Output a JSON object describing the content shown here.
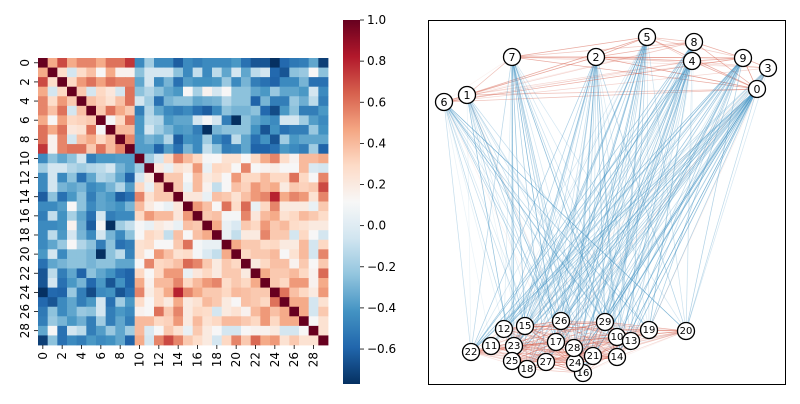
{
  "chart_data": [
    {
      "type": "heatmap",
      "x_tick_labels": [
        "0",
        "2",
        "4",
        "6",
        "8",
        "10",
        "12",
        "14",
        "16",
        "18",
        "20",
        "22",
        "24",
        "26",
        "28"
      ],
      "y_tick_labels": [
        "0",
        "2",
        "4",
        "6",
        "8",
        "10",
        "12",
        "14",
        "16",
        "18",
        "20",
        "22",
        "24",
        "26",
        "28"
      ],
      "size": 30,
      "colormap": "RdBu_r",
      "vmin": -0.77,
      "vmax": 1.0,
      "colorbar_ticks": [
        "1.0",
        "0.8",
        "0.6",
        "0.4",
        "0.2",
        "0.0",
        "−0.2",
        "−0.4",
        "−0.6"
      ],
      "colorbar_tick_values": [
        1.0,
        0.8,
        0.6,
        0.4,
        0.2,
        0.0,
        -0.2,
        -0.4,
        -0.6
      ],
      "values_upper_triangle": [
        [
          1,
          0.45,
          0.7,
          0.45,
          0.55,
          0.55,
          0.45,
          0.6,
          0.6,
          0.75,
          -0.45,
          -0.2,
          -0.45,
          -0.45,
          -0.62,
          -0.45,
          -0.5,
          -0.45,
          -0.45,
          -0.45,
          -0.4,
          -0.55,
          -0.65,
          -0.65,
          -0.77,
          -0.58,
          -0.52,
          -0.5,
          -0.35,
          -0.72
        ],
        [
          1,
          0.28,
          -0.05,
          0.28,
          0.38,
          0.12,
          0.45,
          0.15,
          0.15,
          -0.25,
          -0.05,
          -0.05,
          -0.05,
          -0.25,
          -0.45,
          -0.1,
          -0.45,
          -0.12,
          -0.35,
          -0.05,
          -0.35,
          -0.12,
          -0.05,
          -0.58,
          -0.65,
          -0.25,
          -0.22,
          0.12,
          -0.25
        ],
        [
          1,
          0.3,
          0.5,
          0.6,
          0.48,
          0.6,
          0.55,
          0.55,
          -0.35,
          -0.05,
          -0.45,
          -0.3,
          -0.55,
          -0.38,
          -0.42,
          -0.42,
          -0.4,
          -0.22,
          -0.45,
          -0.3,
          -0.5,
          -0.55,
          -0.6,
          -0.45,
          -0.45,
          -0.3,
          -0.55,
          -0.55
        ],
        [
          1,
          0.35,
          -0.05,
          0.3,
          0.22,
          -0.05,
          0.6,
          -0.25,
          -0.15,
          -0.25,
          -0.35,
          -0.4,
          0.12,
          -0.18,
          0.15,
          -0.05,
          0.12,
          -0.25,
          -0.25,
          -0.35,
          -0.4,
          -0.22,
          -0.35,
          -0.35,
          -0.4,
          -0.05,
          -0.45
        ],
        [
          1,
          0.38,
          0.32,
          0.25,
          0.38,
          0.6,
          -0.05,
          -0.2,
          -0.55,
          -0.3,
          -0.25,
          -0.25,
          -0.35,
          -0.32,
          -0.3,
          -0.15,
          -0.25,
          -0.25,
          -0.6,
          -0.3,
          -0.5,
          -0.5,
          -0.22,
          -0.32,
          -0.12,
          -0.5
        ],
        [
          1,
          0.35,
          0.6,
          0.45,
          0.35,
          -0.5,
          -0.15,
          -0.35,
          -0.45,
          -0.5,
          -0.45,
          -0.55,
          -0.62,
          -0.45,
          -0.25,
          -0.3,
          -0.3,
          -0.25,
          -0.58,
          -0.68,
          -0.4,
          -0.25,
          -0.5,
          -0.5,
          -0.4
        ],
        [
          1,
          0.1,
          0.3,
          0.6,
          -0.4,
          -0.12,
          -0.15,
          -0.4,
          -0.35,
          -0.35,
          -0.05,
          0.1,
          -0.05,
          -0.5,
          -0.77,
          -0.25,
          -0.35,
          -0.4,
          -0.45,
          -0.05,
          -0.05,
          -0.2,
          -0.38,
          -0.45
        ],
        [
          1,
          0.4,
          0.4,
          -0.4,
          -0.05,
          -0.2,
          -0.3,
          -0.4,
          -0.38,
          -0.5,
          -0.77,
          -0.3,
          -0.25,
          -0.25,
          -0.25,
          -0.42,
          -0.65,
          -0.42,
          -0.55,
          -0.5,
          -0.5,
          -0.22,
          -0.42
        ],
        [
          1,
          0.55,
          -0.38,
          -0.3,
          -0.35,
          -0.15,
          -0.62,
          -0.42,
          -0.45,
          -0.2,
          -0.45,
          -0.55,
          -0.12,
          -0.35,
          -0.55,
          -0.42,
          -0.65,
          -0.2,
          -0.4,
          -0.35,
          -0.35,
          -0.35
        ],
        [
          1,
          -0.38,
          -0.38,
          -0.6,
          -0.38,
          -0.55,
          -0.3,
          -0.45,
          -0.1,
          -0.25,
          -0.5,
          -0.48,
          -0.35,
          -0.6,
          -0.6,
          -0.55,
          -0.4,
          -0.45,
          -0.5,
          -0.2,
          -0.6
        ],
        [
          1,
          -0.2,
          -0.05,
          0.3,
          0.55,
          0.4,
          0.3,
          0.1,
          0.12,
          0.25,
          0.25,
          0.12,
          0.3,
          0.45,
          0.55,
          0.28,
          0.15,
          0.4,
          0.4,
          0.45
        ],
        [
          1,
          0.2,
          0.05,
          0.25,
          0.2,
          0.5,
          0.05,
          0.3,
          0.28,
          0.12,
          0.55,
          0.12,
          0.15,
          0.18,
          0.12,
          0.12,
          0.4,
          -0.02,
          -0.05
        ],
        [
          1,
          0.35,
          0.35,
          0.12,
          0.4,
          0.2,
          0.25,
          0.12,
          0.5,
          0.3,
          0.3,
          0.4,
          0.3,
          0.3,
          0.6,
          0.3,
          0.12,
          0.55
        ],
        [
          1,
          0.35,
          0.05,
          0.4,
          0.15,
          -0.1,
          0.12,
          0.38,
          0.32,
          0.5,
          0.4,
          0.45,
          0.2,
          0.35,
          0.32,
          0.35,
          0.7
        ],
        [
          1,
          0.22,
          0.22,
          0.05,
          0.38,
          0.35,
          0.25,
          0.38,
          0.5,
          0.55,
          0.8,
          0.45,
          0.55,
          0.5,
          0.25,
          0.55
        ],
        [
          1,
          0.5,
          0.38,
          0.12,
          0.6,
          0.28,
          0.62,
          0.05,
          0.3,
          0.55,
          0.2,
          0.2,
          0.2,
          0.05,
          0.35
        ],
        [
          1,
          0.35,
          0.38,
          0.1,
          0.1,
          0.55,
          0.22,
          0.4,
          0.45,
          0.25,
          0.3,
          0.4,
          0.35,
          0.28
        ],
        [
          1,
          0.45,
          0.05,
          -0.02,
          0.35,
          0.3,
          0.5,
          0.35,
          0.4,
          0.28,
          0.25,
          0.2,
          0.2
        ],
        [
          1,
          0.05,
          -0.1,
          0.2,
          0.2,
          0.55,
          0.35,
          0.35,
          -0.05,
          0.3,
          0.12,
          -0.05
        ],
        [
          1,
          0.45,
          0.35,
          0.35,
          0.28,
          0.3,
          0.2,
          0.2,
          0.4,
          -0.05,
          0.3
        ],
        [
          1,
          0.3,
          0.35,
          0.35,
          0.4,
          0.12,
          0.25,
          0.4,
          -0.05,
          0.55
        ],
        [
          1,
          0.2,
          0.3,
          0.38,
          0.38,
          0.15,
          0.35,
          0.12,
          0.35
        ],
        [
          1,
          0.45,
          0.35,
          0.35,
          0.4,
          0.3,
          0.15,
          0.62
        ],
        [
          1,
          0.35,
          0.3,
          0.5,
          0.5,
          0.15,
          0.45
        ],
        [
          1,
          0.6,
          0.38,
          0.3,
          0.2,
          0.5
        ],
        [
          1,
          0.45,
          0.45,
          -0.05,
          0.25
        ],
        [
          1,
          0.45,
          -0.05,
          0.35
        ],
        [
          1,
          0.12,
          0.25
        ],
        [
          1,
          0.25
        ],
        [
          1
        ]
      ]
    },
    {
      "type": "network",
      "node_labels": [
        "0",
        "1",
        "2",
        "3",
        "4",
        "5",
        "6",
        "7",
        "8",
        "9",
        "10",
        "11",
        "12",
        "13",
        "14",
        "15",
        "16",
        "17",
        "18",
        "19",
        "20",
        "21",
        "22",
        "23",
        "24",
        "25",
        "26",
        "27",
        "28",
        "29"
      ],
      "edge_weights": "correlation matrix of the heatmap",
      "positive_edge_color": "#d6604d",
      "negative_edge_color": "#4393c3"
    }
  ]
}
